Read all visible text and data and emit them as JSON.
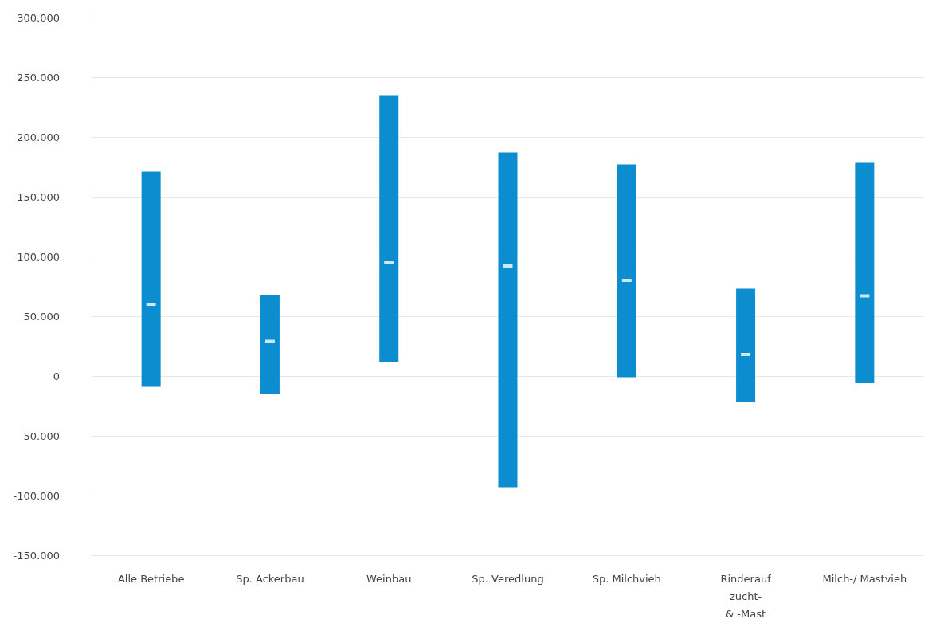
{
  "chart_data": {
    "type": "bar",
    "categories": [
      "Alle Betriebe",
      "Sp. Ackerbau",
      "Weinbau",
      "Sp. Veredlung",
      "Sp. Milchvieh",
      "Rinderauf\nzucht-\n& -Mast",
      "Milch-/ Mastvieh"
    ],
    "series": [
      {
        "color": "#0b8dcf",
        "base": [
          -9000,
          -15000,
          12000,
          -93000,
          -1000,
          -22000,
          -6000
        ],
        "values": [
          180000,
          83000,
          223000,
          280000,
          178000,
          95000,
          185000
        ]
      },
      {
        "type": "scatter",
        "color": "#ffffff",
        "marker": "square",
        "x": [
          "Alle Betriebe",
          "Sp. Ackerbau",
          "Weinbau",
          "Sp. Veredlung",
          "Sp. Milchvieh",
          "Rinderauf\nzucht-\n& -Mast",
          "Milch-/ Mastvieh"
        ],
        "values": [
          60000,
          29000,
          95000,
          92000,
          80000,
          18000,
          67000
        ]
      }
    ],
    "ylim": [
      -150000,
      300000
    ],
    "yticks": [
      {
        "value": -150000,
        "label": "-150.000"
      },
      {
        "value": -100000,
        "label": "-100.000"
      },
      {
        "value": -50000,
        "label": "-50.000"
      },
      0,
      {
        "value": 50000,
        "label": "50.000"
      },
      {
        "value": 100000,
        "label": "100.000"
      },
      {
        "value": 150000,
        "label": "150.000"
      },
      {
        "value": 200000,
        "label": "200.000"
      },
      {
        "value": 250000,
        "label": "250.000"
      },
      {
        "value": 300000,
        "label": "300.000"
      }
    ],
    "grid": "y"
  }
}
